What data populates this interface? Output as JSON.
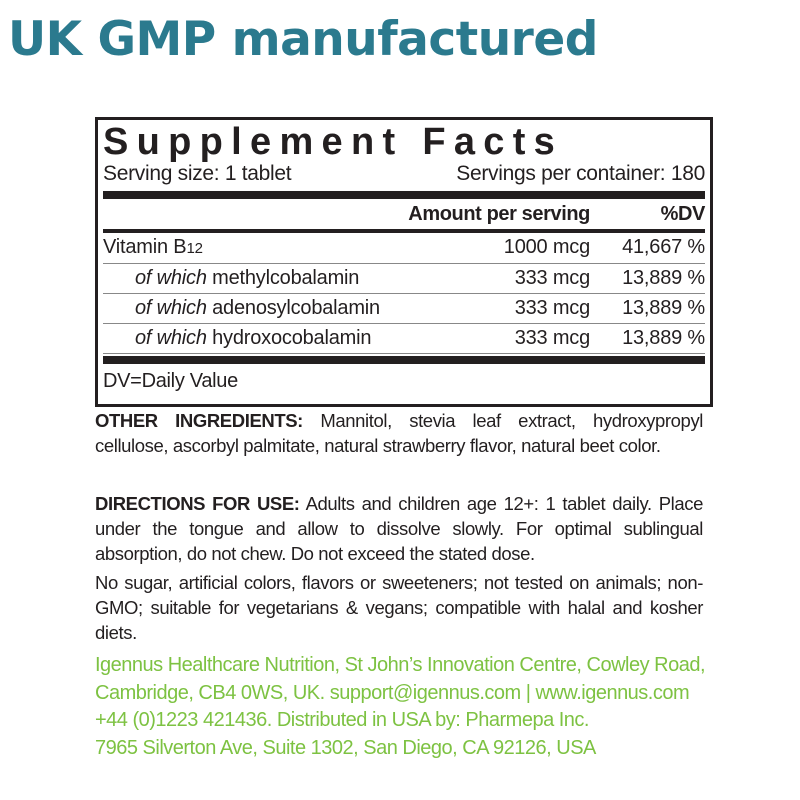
{
  "header": {
    "title": "UK GMP manufactured"
  },
  "facts": {
    "title": "Supplement Facts",
    "serving_size": "Serving size: 1 tablet",
    "servings_per_container": "Servings per container: 180",
    "col_amount": "Amount per serving",
    "col_dv": "%DV",
    "rows": [
      {
        "prefix": "",
        "name": "Vitamin B",
        "subscript": "12",
        "amount": "1000 mcg",
        "dv": "41,667 %"
      },
      {
        "prefix": "of which",
        "name": " methylcobalamin",
        "amount": "333 mcg",
        "dv": "13,889 %"
      },
      {
        "prefix": "of which",
        "name": " adenosylcobalamin",
        "amount": "333 mcg",
        "dv": "13,889 %"
      },
      {
        "prefix": "of which",
        "name": " hydroxocobalamin",
        "amount": "333 mcg",
        "dv": "13,889 %"
      }
    ],
    "footnote": "DV=Daily Value"
  },
  "other_ingredients": {
    "label": "OTHER INGREDIENTS:",
    "text": " Mannitol, stevia leaf extract, hydroxypropyl cellulose, ascorbyl palmitate, natural strawberry flavor, natural beet color."
  },
  "directions": {
    "label": "DIRECTIONS FOR USE:",
    "text": " Adults and children age 12+: 1 tablet daily. Place under the tongue and allow to dissolve slowly. For optimal sublingual absorption, do not chew. Do not exceed the stated dose."
  },
  "claims": "No sugar, artificial colors, flavors or sweeteners; not tested on animals; non-GMO; suitable for vegetarians & vegans; compatible with halal and kosher diets.",
  "contact": {
    "lines": [
      "Igennus Healthcare Nutrition, St John’s Innovation Centre, Cowley Road,",
      "Cambridge, CB4 0WS, UK. support@igennus.com | www.igennus.com",
      "+44 (0)1223 421436. Distributed in USA by: Pharmepa Inc.",
      "7965 Silverton Ave, Suite 1302, San Diego, CA 92126, USA"
    ],
    "color": "#7dc242"
  },
  "colors": {
    "title": "#2b7a8e",
    "text": "#231f20"
  }
}
